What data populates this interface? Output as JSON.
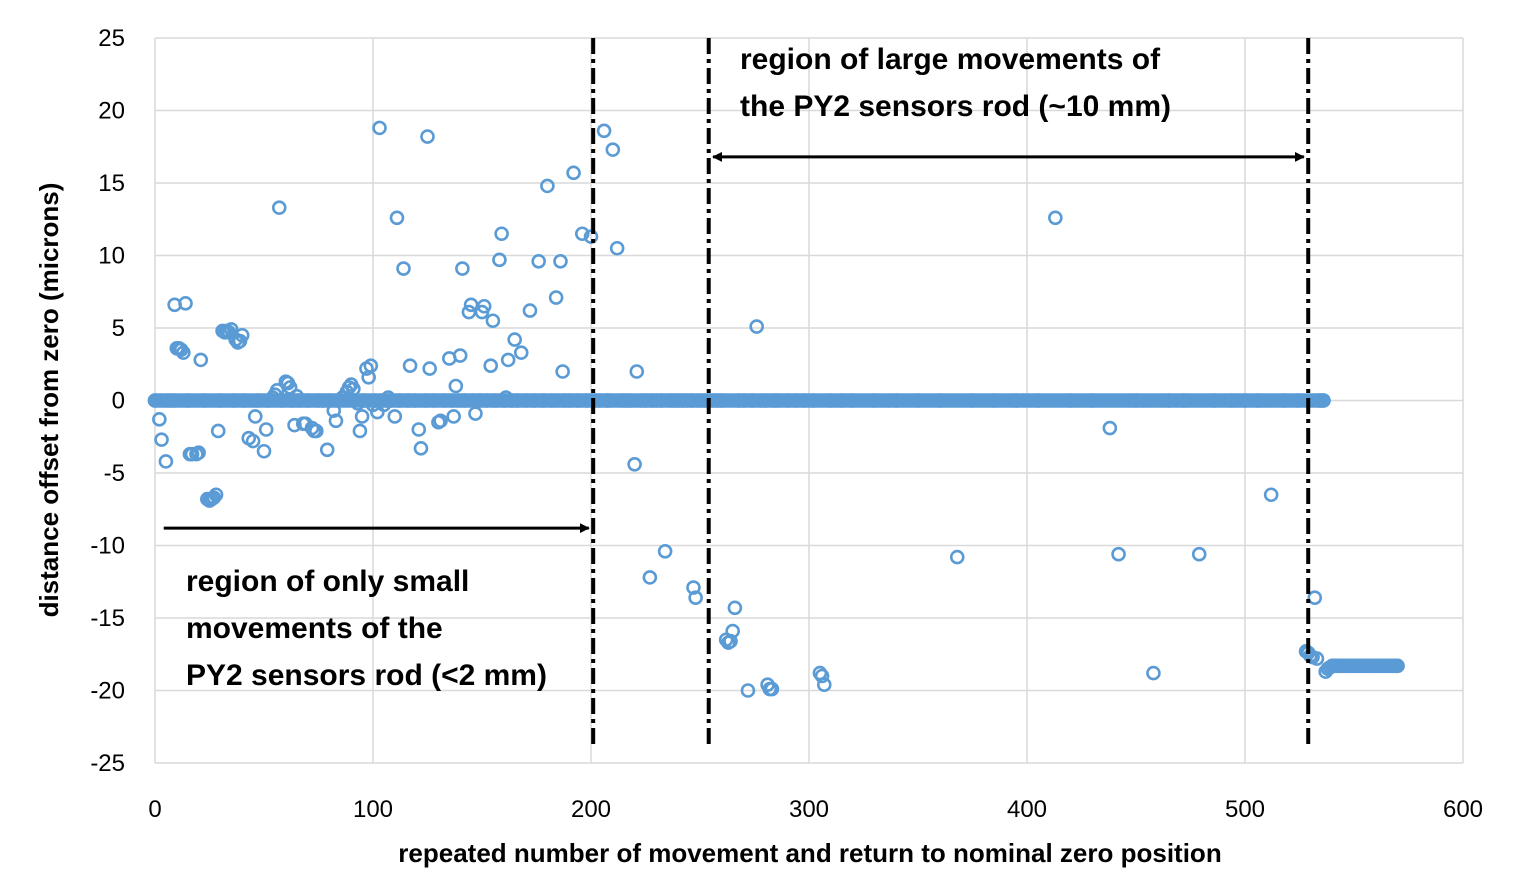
{
  "chart_data": {
    "type": "scatter",
    "xlabel": "repeated number of movement and return to nominal zero position",
    "ylabel": "distance offset from zero (microns)",
    "xlim": [
      0,
      600
    ],
    "ylim": [
      -25,
      25
    ],
    "x_ticks": [
      0,
      100,
      200,
      300,
      400,
      500,
      600
    ],
    "y_ticks": [
      25,
      20,
      15,
      10,
      5,
      0,
      -5,
      -10,
      -15,
      -20,
      -25
    ],
    "grid": true,
    "marker_color": "#5b9bd5",
    "series": [
      {
        "points": [
          [
            0,
            0
          ],
          [
            2,
            -1.3
          ],
          [
            3,
            -2.7
          ],
          [
            5,
            -4.2
          ],
          [
            6,
            0
          ],
          [
            8,
            0
          ],
          [
            9,
            6.6
          ],
          [
            10,
            3.6
          ],
          [
            11,
            3.6
          ],
          [
            12,
            3.5
          ],
          [
            13,
            3.3
          ],
          [
            14,
            6.7
          ],
          [
            15,
            0
          ],
          [
            16,
            -3.7
          ],
          [
            17,
            -3.7
          ],
          [
            19,
            -3.7
          ],
          [
            20,
            -3.6
          ],
          [
            21,
            2.8
          ],
          [
            23,
            0
          ],
          [
            24,
            -6.8
          ],
          [
            25,
            -6.9
          ],
          [
            26,
            -6.8
          ],
          [
            27,
            -6.7
          ],
          [
            28,
            -6.5
          ],
          [
            29,
            -2.1
          ],
          [
            30,
            0
          ],
          [
            31,
            4.8
          ],
          [
            32,
            4.7
          ],
          [
            33,
            4.8
          ],
          [
            34,
            4.7
          ],
          [
            35,
            4.9
          ],
          [
            36,
            0
          ],
          [
            37,
            4.2
          ],
          [
            38,
            4.0
          ],
          [
            39,
            4.1
          ],
          [
            40,
            4.5
          ],
          [
            41,
            0
          ],
          [
            43,
            -2.6
          ],
          [
            45,
            -2.8
          ],
          [
            46,
            -1.1
          ],
          [
            47,
            0
          ],
          [
            50,
            -3.5
          ],
          [
            51,
            -2.0
          ],
          [
            52,
            0
          ],
          [
            54,
            0.2
          ],
          [
            55,
            0.4
          ],
          [
            56,
            0.7
          ],
          [
            57,
            13.3
          ],
          [
            58,
            0
          ],
          [
            60,
            1.3
          ],
          [
            61,
            1.2
          ],
          [
            62,
            0.9
          ],
          [
            63,
            0
          ],
          [
            64,
            -1.7
          ],
          [
            65,
            0.3
          ],
          [
            66,
            0
          ],
          [
            68,
            -1.6
          ],
          [
            69,
            -1.6
          ],
          [
            70,
            0
          ],
          [
            72,
            -1.9
          ],
          [
            73,
            -2.1
          ],
          [
            74,
            -2.1
          ],
          [
            75,
            0
          ],
          [
            77,
            0
          ],
          [
            79,
            -3.4
          ],
          [
            80,
            0
          ],
          [
            82,
            -0.7
          ],
          [
            83,
            -1.4
          ],
          [
            84,
            0
          ],
          [
            86,
            0.2
          ],
          [
            88,
            0.6
          ],
          [
            89,
            0.9
          ],
          [
            90,
            1.1
          ],
          [
            91,
            0.8
          ],
          [
            92,
            0
          ],
          [
            93,
            -0.2
          ],
          [
            94,
            -2.1
          ],
          [
            95,
            -1.1
          ],
          [
            96,
            0
          ],
          [
            97,
            2.2
          ],
          [
            98,
            1.6
          ],
          [
            99,
            2.4
          ],
          [
            100,
            -0.3
          ],
          [
            101,
            0
          ],
          [
            102,
            -0.8
          ],
          [
            103,
            18.8
          ],
          [
            104,
            0
          ],
          [
            105,
            -0.3
          ],
          [
            106,
            0
          ],
          [
            107,
            0.2
          ],
          [
            108,
            0
          ],
          [
            110,
            -1.1
          ],
          [
            111,
            12.6
          ],
          [
            112,
            0
          ],
          [
            114,
            9.1
          ],
          [
            116,
            0
          ],
          [
            117,
            2.4
          ],
          [
            119,
            0
          ],
          [
            121,
            -2.0
          ],
          [
            122,
            -3.3
          ],
          [
            124,
            0
          ],
          [
            125,
            18.2
          ],
          [
            126,
            2.2
          ],
          [
            128,
            0
          ],
          [
            130,
            -1.5
          ],
          [
            131,
            -1.4
          ],
          [
            133,
            0
          ],
          [
            135,
            2.9
          ],
          [
            136,
            0
          ],
          [
            137,
            -1.1
          ],
          [
            138,
            1.0
          ],
          [
            139,
            0
          ],
          [
            140,
            3.1
          ],
          [
            141,
            9.1
          ],
          [
            142,
            0
          ],
          [
            144,
            6.1
          ],
          [
            145,
            6.6
          ],
          [
            146,
            0
          ],
          [
            147,
            -0.9
          ],
          [
            149,
            0
          ],
          [
            150,
            6.1
          ],
          [
            151,
            6.5
          ],
          [
            152,
            0
          ],
          [
            154,
            2.4
          ],
          [
            155,
            5.5
          ],
          [
            156,
            0
          ],
          [
            158,
            9.7
          ],
          [
            159,
            11.5
          ],
          [
            160,
            0
          ],
          [
            161,
            0.2
          ],
          [
            162,
            2.8
          ],
          [
            164,
            0
          ],
          [
            165,
            4.2
          ],
          [
            166,
            0
          ],
          [
            168,
            3.3
          ],
          [
            170,
            0
          ],
          [
            172,
            6.2
          ],
          [
            174,
            0
          ],
          [
            176,
            9.6
          ],
          [
            178,
            0
          ],
          [
            180,
            14.8
          ],
          [
            182,
            0
          ],
          [
            184,
            7.1
          ],
          [
            186,
            9.6
          ],
          [
            187,
            2.0
          ],
          [
            188,
            0
          ],
          [
            190,
            0
          ],
          [
            192,
            15.7
          ],
          [
            194,
            0
          ],
          [
            196,
            11.5
          ],
          [
            198,
            0
          ],
          [
            200,
            11.3
          ],
          [
            202,
            0
          ],
          [
            204,
            0
          ],
          [
            206,
            18.6
          ],
          [
            207,
            0
          ],
          [
            208,
            0
          ],
          [
            210,
            17.3
          ],
          [
            212,
            10.5
          ],
          [
            214,
            0
          ],
          [
            216,
            0
          ],
          [
            218,
            0
          ],
          [
            220,
            -4.4
          ],
          [
            221,
            2.0
          ],
          [
            223,
            0
          ],
          [
            225,
            0
          ],
          [
            227,
            -12.2
          ],
          [
            228,
            0
          ],
          [
            230,
            0
          ],
          [
            232,
            0
          ],
          [
            234,
            -10.4
          ],
          [
            236,
            0
          ],
          [
            238,
            0
          ],
          [
            240,
            0
          ],
          [
            242,
            0
          ],
          [
            244,
            0
          ],
          [
            246,
            0
          ],
          [
            247,
            -12.9
          ],
          [
            248,
            -13.6
          ],
          [
            250,
            0
          ],
          [
            252,
            0
          ],
          [
            254,
            0
          ],
          [
            256,
            0
          ],
          [
            258,
            0
          ],
          [
            260,
            0
          ],
          [
            262,
            -16.5
          ],
          [
            263,
            -16.7
          ],
          [
            264,
            -16.6
          ],
          [
            265,
            -15.9
          ],
          [
            266,
            -14.3
          ],
          [
            268,
            0
          ],
          [
            270,
            0
          ],
          [
            272,
            -20.0
          ],
          [
            274,
            0
          ],
          [
            276,
            5.1
          ],
          [
            278,
            0
          ],
          [
            280,
            0
          ],
          [
            281,
            -19.6
          ],
          [
            282,
            -19.9
          ],
          [
            283,
            -19.9
          ],
          [
            284,
            0
          ],
          [
            286,
            0
          ],
          [
            290,
            0
          ],
          [
            294,
            0
          ],
          [
            298,
            0
          ],
          [
            302,
            0
          ],
          [
            305,
            -18.8
          ],
          [
            306,
            -19.0
          ],
          [
            307,
            -19.6
          ],
          [
            310,
            0
          ],
          [
            315,
            0
          ],
          [
            320,
            0
          ],
          [
            330,
            0
          ],
          [
            340,
            0
          ],
          [
            350,
            0
          ],
          [
            360,
            0
          ],
          [
            368,
            -10.8
          ],
          [
            375,
            0
          ],
          [
            385,
            0
          ],
          [
            395,
            0
          ],
          [
            405,
            0
          ],
          [
            413,
            12.6
          ],
          [
            420,
            0
          ],
          [
            430,
            0
          ],
          [
            438,
            -1.9
          ],
          [
            442,
            -10.6
          ],
          [
            450,
            0
          ],
          [
            458,
            -18.8
          ],
          [
            465,
            0
          ],
          [
            472,
            0
          ],
          [
            479,
            -10.6
          ],
          [
            486,
            0
          ],
          [
            494,
            0
          ],
          [
            500,
            0
          ],
          [
            506,
            0
          ],
          [
            512,
            -6.5
          ],
          [
            518,
            0
          ],
          [
            524,
            0
          ],
          [
            528,
            -17.3
          ],
          [
            529,
            -17.4
          ],
          [
            530,
            -17.6
          ],
          [
            531,
            -17.7
          ],
          [
            532,
            -13.6
          ],
          [
            533,
            -17.8
          ],
          [
            534,
            0
          ],
          [
            535,
            0
          ],
          [
            536,
            0
          ],
          [
            537,
            -18.7
          ],
          [
            538,
            -18.5
          ],
          [
            539,
            -18.4
          ],
          [
            540,
            -18.3
          ],
          [
            541,
            -18.3
          ],
          [
            542,
            -18.3
          ],
          [
            543,
            -18.3
          ],
          [
            544,
            -18.3
          ],
          [
            545,
            -18.3
          ],
          [
            546,
            -18.3
          ],
          [
            547,
            -18.3
          ],
          [
            548,
            -18.3
          ],
          [
            549,
            -18.3
          ],
          [
            550,
            -18.3
          ],
          [
            551,
            -18.3
          ],
          [
            552,
            -18.3
          ],
          [
            553,
            -18.3
          ],
          [
            554,
            -18.3
          ],
          [
            555,
            -18.3
          ],
          [
            556,
            -18.3
          ],
          [
            557,
            -18.3
          ],
          [
            558,
            -18.3
          ],
          [
            559,
            -18.3
          ],
          [
            560,
            -18.3
          ],
          [
            561,
            -18.3
          ],
          [
            562,
            -18.3
          ],
          [
            563,
            -18.3
          ],
          [
            564,
            -18.3
          ],
          [
            565,
            -18.3
          ],
          [
            566,
            -18.3
          ],
          [
            567,
            -18.3
          ],
          [
            568,
            -18.3
          ],
          [
            569,
            -18.3
          ],
          [
            570,
            -18.3
          ]
        ]
      }
    ],
    "dense_zero_run": {
      "from": 0,
      "to": 536,
      "step": 1,
      "y": 0
    },
    "vertical_lines": [
      201,
      254,
      529
    ],
    "annotations": {
      "right_region_line1": "region of large movements of",
      "right_region_line2": "the PY2 sensors rod (~10 mm)",
      "left_region_line1": "region of only small",
      "left_region_line2": "movements of the",
      "left_region_line3": "PY2 sensors rod (<2 mm)"
    },
    "arrows": [
      {
        "from": 4,
        "to": 199,
        "y": -8.8,
        "heads": "end"
      },
      {
        "from": 256,
        "to": 527,
        "y": 16.8,
        "heads": "both"
      }
    ]
  }
}
